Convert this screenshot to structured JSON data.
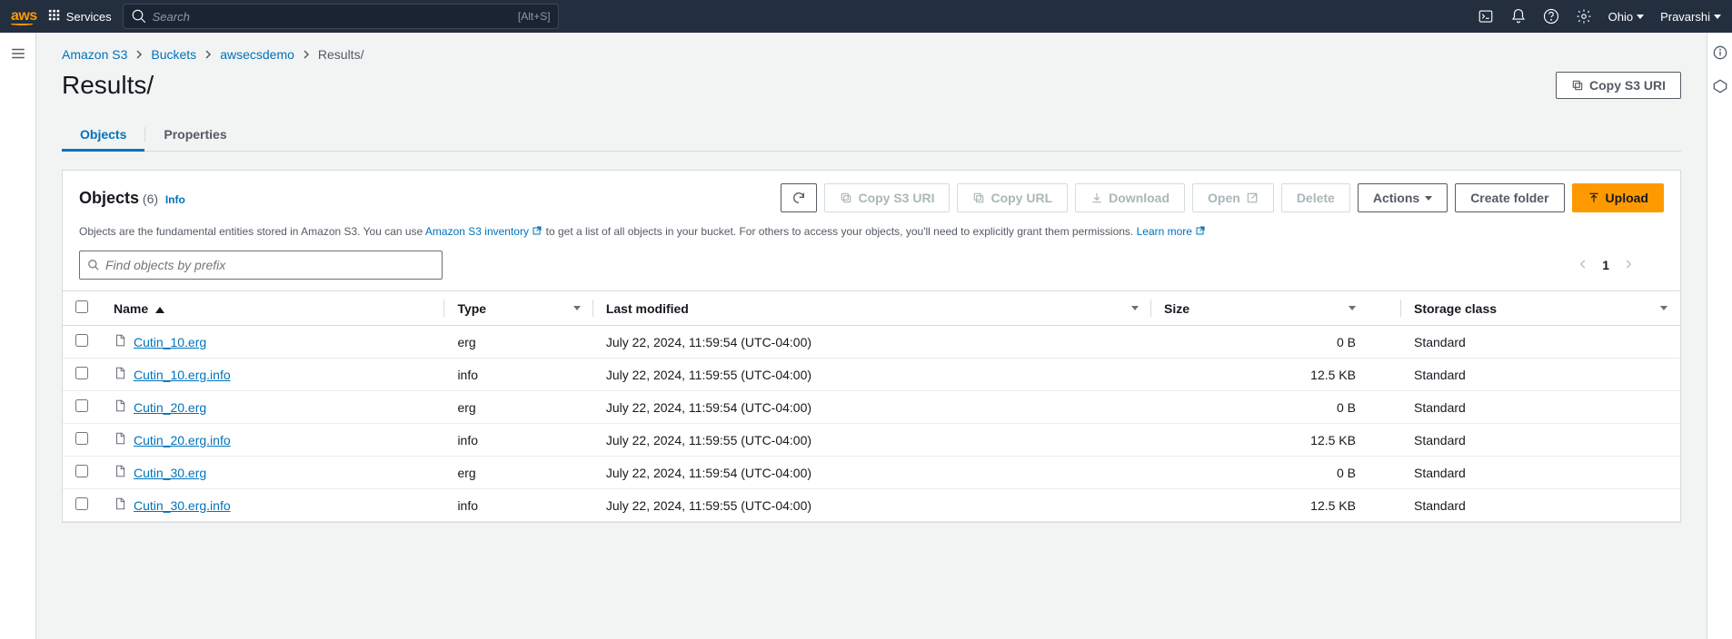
{
  "nav": {
    "services": "Services",
    "search_placeholder": "Search",
    "search_kbd": "[Alt+S]",
    "region": "Ohio",
    "user": "Pravarshi"
  },
  "breadcrumb": [
    {
      "label": "Amazon S3",
      "link": true
    },
    {
      "label": "Buckets",
      "link": true
    },
    {
      "label": "awsecsdemo",
      "link": true
    },
    {
      "label": "Results/",
      "link": false
    }
  ],
  "page": {
    "title": "Results/",
    "copy_uri": "Copy S3 URI"
  },
  "tabs": {
    "objects": "Objects",
    "properties": "Properties"
  },
  "panel": {
    "title": "Objects",
    "count": "(6)",
    "info": "Info",
    "desc_prefix": "Objects are the fundamental entities stored in Amazon S3. You can use ",
    "inventory_link": "Amazon S3 inventory",
    "desc_mid": " to get a list of all objects in your bucket. For others to access your objects, you'll need to explicitly grant them permissions. ",
    "learn_more": "Learn more",
    "buttons": {
      "copy_s3_uri": "Copy S3 URI",
      "copy_url": "Copy URL",
      "download": "Download",
      "open": "Open",
      "delete": "Delete",
      "actions": "Actions",
      "create_folder": "Create folder",
      "upload": "Upload"
    },
    "search_placeholder": "Find objects by prefix",
    "page_num": "1"
  },
  "columns": {
    "name": "Name",
    "type": "Type",
    "modified": "Last modified",
    "size": "Size",
    "storage": "Storage class"
  },
  "rows": [
    {
      "name": "Cutin_10.erg",
      "type": "erg",
      "modified": "July 22, 2024, 11:59:54 (UTC-04:00)",
      "size": "0 B",
      "storage": "Standard"
    },
    {
      "name": "Cutin_10.erg.info",
      "type": "info",
      "modified": "July 22, 2024, 11:59:55 (UTC-04:00)",
      "size": "12.5 KB",
      "storage": "Standard"
    },
    {
      "name": "Cutin_20.erg",
      "type": "erg",
      "modified": "July 22, 2024, 11:59:54 (UTC-04:00)",
      "size": "0 B",
      "storage": "Standard"
    },
    {
      "name": "Cutin_20.erg.info",
      "type": "info",
      "modified": "July 22, 2024, 11:59:55 (UTC-04:00)",
      "size": "12.5 KB",
      "storage": "Standard"
    },
    {
      "name": "Cutin_30.erg",
      "type": "erg",
      "modified": "July 22, 2024, 11:59:54 (UTC-04:00)",
      "size": "0 B",
      "storage": "Standard"
    },
    {
      "name": "Cutin_30.erg.info",
      "type": "info",
      "modified": "July 22, 2024, 11:59:55 (UTC-04:00)",
      "size": "12.5 KB",
      "storage": "Standard"
    }
  ]
}
